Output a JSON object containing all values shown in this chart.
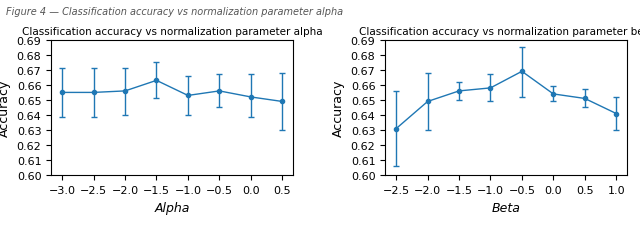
{
  "alpha": {
    "title": "Classification accuracy vs normalization parameter alpha",
    "xlabel": "Alpha",
    "ylabel": "Accuracy",
    "x": [
      -3.0,
      -2.5,
      -2.0,
      -1.5,
      -1.0,
      -0.5,
      0.0,
      0.5
    ],
    "y": [
      0.655,
      0.655,
      0.656,
      0.663,
      0.653,
      0.656,
      0.652,
      0.649
    ],
    "yerr_low": [
      0.016,
      0.016,
      0.016,
      0.012,
      0.013,
      0.011,
      0.013,
      0.019
    ],
    "yerr_high": [
      0.016,
      0.016,
      0.015,
      0.012,
      0.013,
      0.011,
      0.015,
      0.019
    ],
    "ylim": [
      0.6,
      0.69
    ],
    "yticks": [
      0.6,
      0.61,
      0.62,
      0.63,
      0.64,
      0.65,
      0.66,
      0.67,
      0.68,
      0.69
    ],
    "xticks": [
      -3.0,
      -2.5,
      -2.0,
      -1.5,
      -1.0,
      -0.5,
      0.0,
      0.5
    ],
    "color": "#1f77b4"
  },
  "beta": {
    "title": "Classification accuracy vs normalization parameter beta",
    "xlabel": "Beta",
    "ylabel": "Accuracy",
    "x": [
      -2.5,
      -2.0,
      -1.5,
      -1.0,
      -0.5,
      0.0,
      0.5,
      1.0
    ],
    "y": [
      0.631,
      0.649,
      0.656,
      0.658,
      0.669,
      0.654,
      0.651,
      0.641
    ],
    "yerr_low": [
      0.025,
      0.019,
      0.006,
      0.009,
      0.017,
      0.005,
      0.006,
      0.011
    ],
    "yerr_high": [
      0.025,
      0.019,
      0.006,
      0.009,
      0.016,
      0.005,
      0.006,
      0.011
    ],
    "ylim": [
      0.6,
      0.69
    ],
    "yticks": [
      0.6,
      0.61,
      0.62,
      0.63,
      0.64,
      0.65,
      0.66,
      0.67,
      0.68,
      0.69
    ],
    "xticks": [
      -2.5,
      -2.0,
      -1.5,
      -1.0,
      -0.5,
      0.0,
      0.5,
      1.0
    ],
    "color": "#1f77b4"
  },
  "header_text": "Figure 4 — Classification accuracy vs normalization parameter alpha",
  "figsize": [
    6.4,
    2.26
  ],
  "dpi": 100
}
